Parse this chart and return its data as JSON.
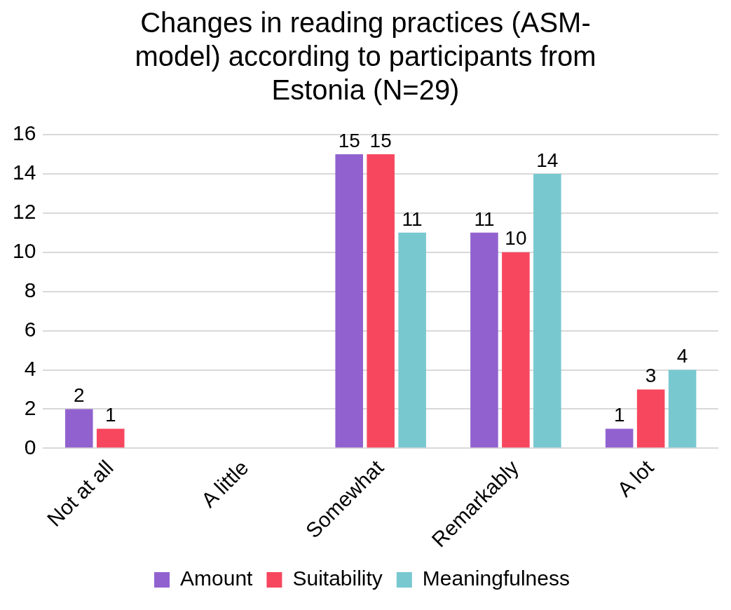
{
  "chart_data": {
    "type": "bar",
    "title": "Changes in reading practices (ASM-model) according to participants from Estonia (N=29)",
    "categories": [
      "Not at all",
      "A little",
      "Somewhat",
      "Remarkably",
      "A lot"
    ],
    "series": [
      {
        "name": "Amount",
        "color": "#9162cf",
        "values": [
          2,
          null,
          15,
          11,
          1
        ]
      },
      {
        "name": "Suitability",
        "color": "#f7475f",
        "values": [
          1,
          null,
          15,
          10,
          3
        ]
      },
      {
        "name": "Meaningfulness",
        "color": "#78c8d0",
        "values": [
          null,
          null,
          11,
          14,
          4
        ]
      }
    ],
    "ylim": [
      0,
      16
    ],
    "yticks": [
      0,
      2,
      4,
      6,
      8,
      10,
      12,
      14,
      16
    ],
    "grid": "y",
    "legend": "bottom",
    "data_labels": true
  }
}
